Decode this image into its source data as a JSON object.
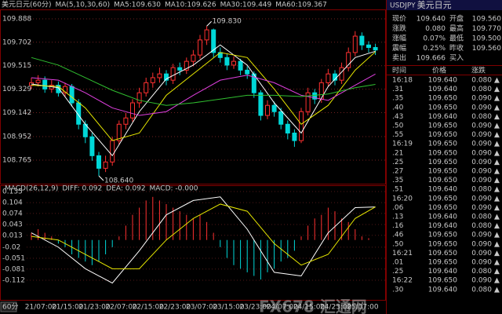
{
  "chart_data": [
    {
      "type": "candlestick",
      "title": "美元日元(60分)",
      "indicator": "MA(5,10,30,60)",
      "ylim": [
        108.59,
        109.95
      ],
      "yticks": [
        109.888,
        109.702,
        109.515,
        109.329,
        109.142,
        108.952,
        108.765
      ],
      "grid": true,
      "up_color": "#ff3030",
      "down_color": "#00d8d8",
      "ohlc": [
        [
          109.36,
          109.42,
          109.33,
          109.38
        ],
        [
          109.38,
          109.44,
          109.35,
          109.4
        ],
        [
          109.4,
          109.43,
          109.3,
          109.33
        ],
        [
          109.33,
          109.4,
          109.3,
          109.36
        ],
        [
          109.36,
          109.39,
          109.27,
          109.3
        ],
        [
          109.3,
          109.38,
          109.27,
          109.35
        ],
        [
          109.35,
          109.37,
          109.19,
          109.22
        ],
        [
          109.22,
          109.25,
          109.01,
          109.05
        ],
        [
          109.05,
          109.08,
          108.9,
          108.95
        ],
        [
          108.95,
          108.98,
          108.76,
          108.8
        ],
        [
          108.8,
          108.83,
          108.64,
          108.7
        ],
        [
          108.7,
          108.8,
          108.67,
          108.75
        ],
        [
          108.75,
          108.95,
          108.72,
          108.92
        ],
        [
          108.92,
          109.08,
          108.89,
          109.05
        ],
        [
          109.05,
          109.14,
          109.01,
          109.1
        ],
        [
          109.1,
          109.25,
          109.07,
          109.22
        ],
        [
          109.22,
          109.34,
          109.18,
          109.3
        ],
        [
          109.3,
          109.42,
          109.27,
          109.38
        ],
        [
          109.38,
          109.46,
          109.34,
          109.42
        ],
        [
          109.42,
          109.5,
          109.38,
          109.45
        ],
        [
          109.45,
          109.48,
          109.36,
          109.4
        ],
        [
          109.4,
          109.53,
          109.37,
          109.5
        ],
        [
          109.5,
          109.54,
          109.44,
          109.48
        ],
        [
          109.48,
          109.58,
          109.45,
          109.55
        ],
        [
          109.55,
          109.64,
          109.51,
          109.6
        ],
        [
          109.6,
          109.76,
          109.57,
          109.72
        ],
        [
          109.72,
          109.83,
          109.68,
          109.8
        ],
        [
          109.8,
          109.81,
          109.58,
          109.62
        ],
        [
          109.62,
          109.66,
          109.54,
          109.58
        ],
        [
          109.58,
          109.61,
          109.48,
          109.52
        ],
        [
          109.52,
          109.59,
          109.49,
          109.55
        ],
        [
          109.55,
          109.57,
          109.44,
          109.48
        ],
        [
          109.48,
          109.51,
          109.41,
          109.45
        ],
        [
          109.45,
          109.47,
          109.26,
          109.3
        ],
        [
          109.3,
          109.32,
          109.08,
          109.12
        ],
        [
          109.12,
          109.24,
          109.09,
          109.2
        ],
        [
          109.2,
          109.23,
          109.11,
          109.15
        ],
        [
          109.15,
          109.18,
          109.01,
          109.05
        ],
        [
          109.05,
          109.08,
          108.93,
          108.98
        ],
        [
          108.98,
          109.01,
          108.87,
          108.92
        ],
        [
          108.92,
          109.18,
          108.9,
          109.15
        ],
        [
          109.15,
          109.34,
          109.12,
          109.3
        ],
        [
          109.3,
          109.33,
          109.21,
          109.25
        ],
        [
          109.25,
          109.41,
          109.22,
          109.38
        ],
        [
          109.38,
          109.49,
          109.35,
          109.45
        ],
        [
          109.45,
          109.48,
          109.36,
          109.4
        ],
        [
          109.4,
          109.54,
          109.37,
          109.5
        ],
        [
          109.5,
          109.66,
          109.47,
          109.62
        ],
        [
          109.62,
          109.79,
          109.59,
          109.75
        ],
        [
          109.75,
          109.78,
          109.64,
          109.68
        ],
        [
          109.68,
          109.71,
          109.62,
          109.66
        ],
        [
          109.66,
          109.69,
          109.6,
          109.64
        ]
      ],
      "ma_index": [
        0,
        4,
        8,
        12,
        16,
        20,
        24,
        28,
        32,
        36,
        40,
        44,
        48,
        51
      ],
      "series": [
        {
          "name": "MA5:109.630",
          "color": "#ffffff",
          "values": [
            109.37,
            109.34,
            109.05,
            108.8,
            109.15,
            109.41,
            109.52,
            109.68,
            109.52,
            109.22,
            108.98,
            109.35,
            109.58,
            109.63
          ]
        },
        {
          "name": "MA10:109.626",
          "color": "#e8e800",
          "values": [
            109.36,
            109.35,
            109.18,
            108.92,
            108.98,
            109.28,
            109.45,
            109.62,
            109.58,
            109.33,
            109.05,
            109.2,
            109.48,
            109.626
          ]
        },
        {
          "name": "MA30:109.449",
          "color": "#e040e0",
          "values": [
            109.42,
            109.4,
            109.3,
            109.18,
            109.12,
            109.15,
            109.28,
            109.4,
            109.44,
            109.38,
            109.28,
            109.24,
            109.36,
            109.449
          ]
        },
        {
          "name": "MA60:109.367",
          "color": "#30c030",
          "values": [
            109.58,
            109.52,
            109.42,
            109.32,
            109.24,
            109.2,
            109.22,
            109.25,
            109.28,
            109.28,
            109.27,
            109.29,
            109.34,
            109.367
          ]
        }
      ],
      "annotations": [
        {
          "text": "109.830",
          "value": 109.83,
          "index": 26
        },
        {
          "text": "108.640",
          "value": 108.64,
          "index": 10
        }
      ]
    },
    {
      "type": "macd",
      "indicator": "MACD(26,12,9)",
      "period": "60分",
      "ylim": [
        -0.158,
        0.148
      ],
      "yticks": [
        0.135,
        0.104,
        0.074,
        0.043,
        0.013,
        -0.02,
        -0.051,
        -0.081,
        -0.112
      ],
      "histogram": {
        "name": "MACD: -0.000",
        "color": "#e040e0",
        "up_color": "#ff3030",
        "down_color": "#00d8d8",
        "values": [
          0.02,
          0.03,
          0.02,
          0.01,
          -0.01,
          -0.02,
          -0.04,
          -0.05,
          -0.06,
          -0.07,
          -0.06,
          -0.04,
          -0.02,
          0.01,
          0.04,
          0.07,
          0.09,
          0.11,
          0.12,
          0.11,
          0.1,
          0.09,
          0.08,
          0.07,
          0.06,
          0.07,
          0.05,
          0.02,
          -0.02,
          -0.05,
          -0.07,
          -0.08,
          -0.09,
          -0.1,
          -0.11,
          -0.09,
          -0.08,
          -0.06,
          -0.05,
          -0.03,
          0.01,
          0.04,
          0.06,
          0.07,
          0.09,
          0.08,
          0.06,
          0.05,
          0.03,
          0.01,
          0.005,
          0
        ]
      },
      "line_index": [
        0,
        4,
        8,
        12,
        16,
        20,
        24,
        28,
        32,
        36,
        40,
        44,
        48,
        51
      ],
      "series": [
        {
          "name": "DIFF: 0.092",
          "color": "#ffffff",
          "values": [
            0.02,
            -0.02,
            -0.08,
            -0.12,
            -0.03,
            0.07,
            0.11,
            0.12,
            0.03,
            -0.09,
            -0.1,
            0.02,
            0.09,
            0.092
          ]
        },
        {
          "name": "DEA: 0.092",
          "color": "#e8e800",
          "values": [
            0.01,
            0.0,
            -0.04,
            -0.08,
            -0.08,
            0.0,
            0.06,
            0.1,
            0.08,
            -0.01,
            -0.07,
            -0.04,
            0.06,
            0.092
          ]
        }
      ],
      "x_labels": [
        "21/07:00",
        "21/15:00",
        "21/23:00",
        "22/07:00",
        "22/15:00",
        "22/23:00",
        "23/07:00",
        "23/15:00",
        "23/23:00",
        "24/07:00",
        "24/15:00",
        "24/23:00",
        "25/07:00"
      ]
    }
  ],
  "quote_panel": {
    "symbol": "USDJPY",
    "name": "美元日元",
    "rows": [
      [
        "现价",
        "109.640",
        "开盘",
        "109.560"
      ],
      [
        "涨跌",
        "0.080",
        "最高",
        "109.770"
      ],
      [
        "涨幅",
        "0.07%",
        "最低",
        "109.500"
      ],
      [
        "震幅",
        "0.25%",
        "昨收",
        "109.560"
      ],
      [
        "卖出",
        "109.666",
        "买入"
      ]
    ],
    "ticks_header": [
      "时间",
      "价格",
      "涨跌"
    ],
    "ticks": [
      [
        "16:18",
        "109.640",
        "0.080",
        "▲"
      ],
      [
        ".31",
        "109.640",
        "0.080",
        "▲"
      ],
      [
        ".35",
        "109.650",
        "0.090",
        "▲"
      ],
      [
        ".40",
        "109.650",
        "0.090",
        "▲"
      ],
      [
        ".43",
        "109.640",
        "0.080",
        "▲"
      ],
      [
        ".50",
        "109.650",
        "0.090",
        "▲"
      ],
      [
        ".55",
        "109.650",
        "0.090",
        "▲"
      ],
      [
        "16:19",
        "109.650",
        "0.090",
        "▲"
      ],
      [
        ".21",
        "109.650",
        "0.090",
        "▲"
      ],
      [
        ".25",
        "109.650",
        "0.090",
        "▲"
      ],
      [
        ".27",
        "109.650",
        "0.090",
        "▲"
      ],
      [
        ".35",
        "109.650",
        "0.090",
        "▲"
      ],
      [
        ".51",
        "109.640",
        "0.080",
        "▲"
      ],
      [
        "16:20",
        "109.650",
        "0.090",
        "▲"
      ],
      [
        ".06",
        "109.650",
        "0.090",
        "▲"
      ],
      [
        ".13",
        "109.640",
        "0.080",
        "▲"
      ],
      [
        ".16",
        "109.640",
        "0.080",
        "▲"
      ],
      [
        ".46",
        "109.650",
        "0.090",
        "▲"
      ],
      [
        ".50",
        "109.650",
        "0.090",
        "▲"
      ],
      [
        "16:21",
        "109.650",
        "0.090",
        "▲"
      ],
      [
        ".01",
        "109.650",
        "0.090",
        "▲"
      ],
      [
        ".25",
        "109.640",
        "0.080",
        "▲"
      ],
      [
        "16:22",
        "109.650",
        "0.090",
        "▲"
      ],
      [
        ".30",
        "109.640",
        "0.080",
        "▲"
      ]
    ]
  },
  "watermark": "FX678 汇通网"
}
